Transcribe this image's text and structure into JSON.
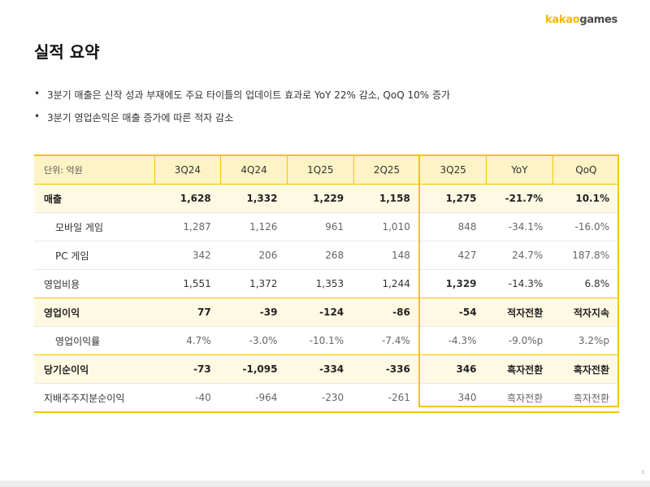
{
  "logo": {
    "part1": "kakao",
    "part2": "games"
  },
  "title": "실적 요약",
  "bullets": [
    "3분기 매출은 신작 성과 부재에도 주요 타이틀의 업데이트 효과로 YoY 22% 감소, QoQ 10% 증가",
    "3분기 영업손익은 매출 증가에 따른 적자 감소"
  ],
  "bullet_symbol": "•",
  "table": {
    "unit_label": "단위: 억원",
    "headers": [
      "3Q24",
      "4Q24",
      "1Q25",
      "2Q25",
      "3Q25",
      "YoY",
      "QoQ"
    ],
    "rows": [
      {
        "label": "매출",
        "values": [
          "1,628",
          "1,332",
          "1,229",
          "1,158",
          "1,275",
          "-21.7%",
          "10.1%"
        ]
      },
      {
        "label": "모바일 게임",
        "values": [
          "1,287",
          "1,126",
          "961",
          "1,010",
          "848",
          "-34.1%",
          "-16.0%"
        ]
      },
      {
        "label": "PC 게임",
        "values": [
          "342",
          "206",
          "268",
          "148",
          "427",
          "24.7%",
          "187.8%"
        ]
      },
      {
        "label": "영업비용",
        "values": [
          "1,551",
          "1,372",
          "1,353",
          "1,244",
          "1,329",
          "-14.3%",
          "6.8%"
        ]
      },
      {
        "label": "영업이익",
        "values": [
          "77",
          "-39",
          "-124",
          "-86",
          "-54",
          "적자전환",
          "적자지속"
        ]
      },
      {
        "label": "영업이익률",
        "values": [
          "4.7%",
          "-3.0%",
          "-10.1%",
          "-7.4%",
          "-4.3%",
          "-9.0%p",
          "3.2%p"
        ]
      },
      {
        "label": "당기순이익",
        "values": [
          "-73",
          "-1,095",
          "-334",
          "-336",
          "346",
          "흑자전환",
          "흑자전환"
        ]
      },
      {
        "label": "지배주주지분순이익",
        "values": [
          "-40",
          "-964",
          "-230",
          "-261",
          "340",
          "흑자전환",
          "흑자전환"
        ]
      }
    ]
  },
  "colors": {
    "accent": "#f5c400",
    "header_bg": "#fef3c5",
    "row_highlight_bg": "#fef9e3",
    "logo_yellow": "#f5b800"
  },
  "page_number": "3"
}
